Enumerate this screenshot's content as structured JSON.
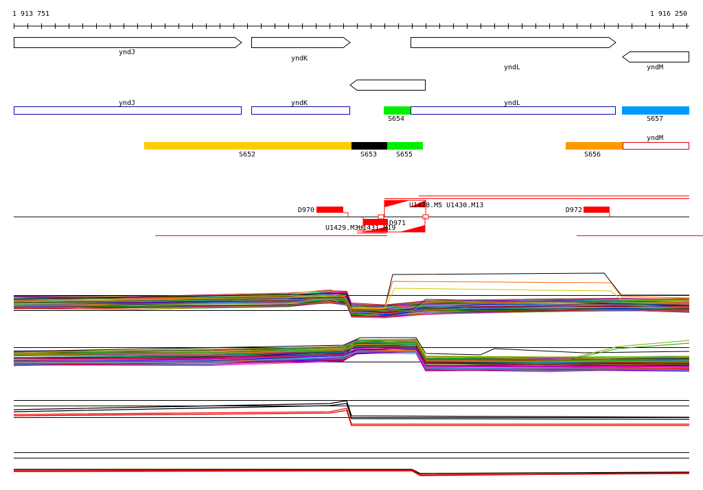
{
  "ruler": {
    "start_label": "1 913 751",
    "end_label": "1 916 250",
    "start_bp": 1913751,
    "end_bp": 1916250
  },
  "gene_arrows": [
    {
      "label": "yndJ",
      "strand": "+"
    },
    {
      "label": "yndK",
      "strand": "+"
    },
    {
      "label": "yndL",
      "strand": "+"
    },
    {
      "label": "yndM",
      "strand": "-"
    },
    {
      "label": "",
      "strand": "-"
    }
  ],
  "gene_boxes": [
    {
      "label": "yndJ"
    },
    {
      "label": "yndK"
    },
    {
      "label": "yndL"
    }
  ],
  "segments_row1": [
    {
      "label": "S654",
      "color": "#00ee00"
    },
    {
      "label": "S657",
      "color": "#0099ff"
    }
  ],
  "segments_row2": [
    {
      "label": "S652",
      "color": "#ffcc00"
    },
    {
      "label": "S653",
      "color": "#000000"
    },
    {
      "label": "S655",
      "color": "#00ee00"
    },
    {
      "label": "S656",
      "color": "#ff9900"
    },
    {
      "label": "yndM",
      "color": "#ffffff"
    }
  ],
  "features": {
    "blocks": [
      {
        "label": "D970"
      },
      {
        "label": "D971"
      },
      {
        "label": "D972"
      }
    ],
    "upper_label": "U1428.M5 U1430.M13",
    "lower_label": "U1429.M3U1431.M19"
  },
  "colors": {
    "feature_red": "#ff0000",
    "box_blue": "#0000aa",
    "box_red": "#cc0000"
  }
}
